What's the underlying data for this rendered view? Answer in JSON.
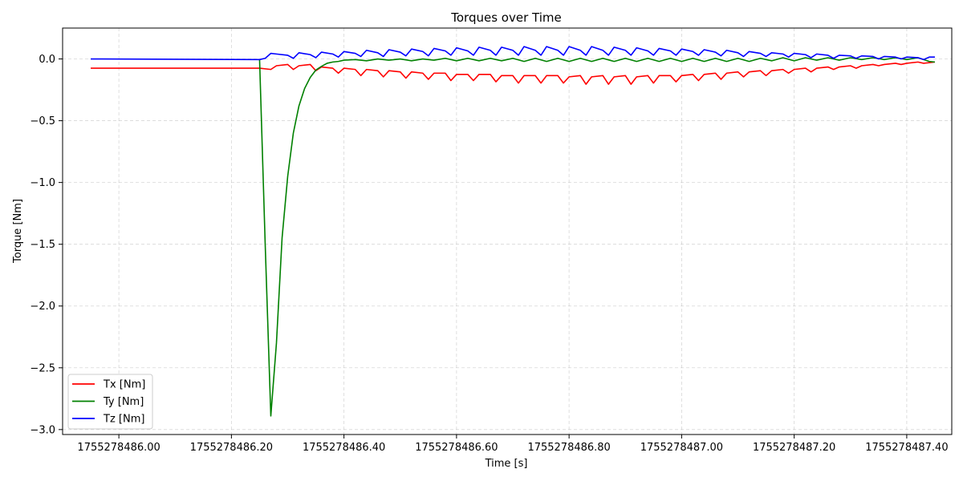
{
  "chart_data": {
    "type": "line",
    "title": "Torques over Time",
    "xlabel": "Time [s]",
    "ylabel": "Torque [Nm]",
    "xlim": [
      1755278485.9,
      1755278487.48
    ],
    "ylim": [
      -3.04,
      0.25
    ],
    "xticks": [
      {
        "value": 1755278486.0,
        "label": "1755278486.00"
      },
      {
        "value": 1755278486.2,
        "label": "1755278486.20"
      },
      {
        "value": 1755278486.4,
        "label": "1755278486.40"
      },
      {
        "value": 1755278486.6,
        "label": "1755278486.60"
      },
      {
        "value": 1755278486.8,
        "label": "1755278486.80"
      },
      {
        "value": 1755278487.0,
        "label": "1755278487.00"
      },
      {
        "value": 1755278487.2,
        "label": "1755278487.20"
      },
      {
        "value": 1755278487.4,
        "label": "1755278487.40"
      }
    ],
    "yticks": [
      {
        "value": 0.0,
        "label": "0.0"
      },
      {
        "value": -0.5,
        "label": "−0.5"
      },
      {
        "value": -1.0,
        "label": "−1.0"
      },
      {
        "value": -1.5,
        "label": "−1.5"
      },
      {
        "value": -2.0,
        "label": "−2.0"
      },
      {
        "value": -2.5,
        "label": "−2.5"
      },
      {
        "value": -3.0,
        "label": "−3.0"
      }
    ],
    "grid": true,
    "legend_position": "bottom-left",
    "series": [
      {
        "name": "Tx [Nm]",
        "color": "#ff0000",
        "points": [
          [
            1755278485.95,
            -0.075
          ],
          [
            1755278486.25,
            -0.075
          ],
          [
            1755278486.27,
            -0.085
          ],
          [
            1755278486.28,
            -0.055
          ],
          [
            1755278486.3,
            -0.045
          ],
          [
            1755278486.31,
            -0.085
          ],
          [
            1755278486.32,
            -0.055
          ],
          [
            1755278486.34,
            -0.045
          ],
          [
            1755278486.35,
            -0.095
          ],
          [
            1755278486.36,
            -0.065
          ],
          [
            1755278486.38,
            -0.075
          ],
          [
            1755278486.39,
            -0.115
          ],
          [
            1755278486.4,
            -0.075
          ],
          [
            1755278486.42,
            -0.085
          ],
          [
            1755278486.43,
            -0.135
          ],
          [
            1755278486.44,
            -0.085
          ],
          [
            1755278486.46,
            -0.095
          ],
          [
            1755278486.47,
            -0.145
          ],
          [
            1755278486.48,
            -0.095
          ],
          [
            1755278486.5,
            -0.105
          ],
          [
            1755278486.51,
            -0.155
          ],
          [
            1755278486.52,
            -0.105
          ],
          [
            1755278486.54,
            -0.115
          ],
          [
            1755278486.55,
            -0.165
          ],
          [
            1755278486.56,
            -0.115
          ],
          [
            1755278486.58,
            -0.115
          ],
          [
            1755278486.59,
            -0.175
          ],
          [
            1755278486.6,
            -0.125
          ],
          [
            1755278486.62,
            -0.125
          ],
          [
            1755278486.63,
            -0.175
          ],
          [
            1755278486.64,
            -0.125
          ],
          [
            1755278486.66,
            -0.125
          ],
          [
            1755278486.67,
            -0.185
          ],
          [
            1755278486.68,
            -0.135
          ],
          [
            1755278486.7,
            -0.135
          ],
          [
            1755278486.71,
            -0.195
          ],
          [
            1755278486.72,
            -0.135
          ],
          [
            1755278486.74,
            -0.135
          ],
          [
            1755278486.75,
            -0.195
          ],
          [
            1755278486.76,
            -0.135
          ],
          [
            1755278486.78,
            -0.135
          ],
          [
            1755278486.79,
            -0.195
          ],
          [
            1755278486.8,
            -0.145
          ],
          [
            1755278486.82,
            -0.135
          ],
          [
            1755278486.83,
            -0.205
          ],
          [
            1755278486.84,
            -0.145
          ],
          [
            1755278486.86,
            -0.135
          ],
          [
            1755278486.87,
            -0.205
          ],
          [
            1755278486.88,
            -0.145
          ],
          [
            1755278486.9,
            -0.135
          ],
          [
            1755278486.91,
            -0.205
          ],
          [
            1755278486.92,
            -0.145
          ],
          [
            1755278486.94,
            -0.135
          ],
          [
            1755278486.95,
            -0.195
          ],
          [
            1755278486.96,
            -0.135
          ],
          [
            1755278486.98,
            -0.135
          ],
          [
            1755278486.99,
            -0.185
          ],
          [
            1755278487.0,
            -0.135
          ],
          [
            1755278487.02,
            -0.125
          ],
          [
            1755278487.03,
            -0.175
          ],
          [
            1755278487.04,
            -0.125
          ],
          [
            1755278487.06,
            -0.115
          ],
          [
            1755278487.07,
            -0.165
          ],
          [
            1755278487.08,
            -0.115
          ],
          [
            1755278487.1,
            -0.105
          ],
          [
            1755278487.11,
            -0.145
          ],
          [
            1755278487.12,
            -0.105
          ],
          [
            1755278487.14,
            -0.095
          ],
          [
            1755278487.15,
            -0.135
          ],
          [
            1755278487.16,
            -0.095
          ],
          [
            1755278487.18,
            -0.085
          ],
          [
            1755278487.19,
            -0.115
          ],
          [
            1755278487.2,
            -0.085
          ],
          [
            1755278487.22,
            -0.075
          ],
          [
            1755278487.23,
            -0.105
          ],
          [
            1755278487.24,
            -0.075
          ],
          [
            1755278487.26,
            -0.065
          ],
          [
            1755278487.27,
            -0.085
          ],
          [
            1755278487.28,
            -0.065
          ],
          [
            1755278487.3,
            -0.055
          ],
          [
            1755278487.31,
            -0.075
          ],
          [
            1755278487.32,
            -0.055
          ],
          [
            1755278487.34,
            -0.045
          ],
          [
            1755278487.35,
            -0.055
          ],
          [
            1755278487.36,
            -0.045
          ],
          [
            1755278487.38,
            -0.035
          ],
          [
            1755278487.39,
            -0.045
          ],
          [
            1755278487.4,
            -0.035
          ],
          [
            1755278487.42,
            -0.025
          ],
          [
            1755278487.43,
            -0.035
          ],
          [
            1755278487.45,
            -0.025
          ]
        ]
      },
      {
        "name": "Ty [Nm]",
        "color": "#008000",
        "points": [
          [
            1755278486.25,
            0.0
          ],
          [
            1755278486.26,
            -1.5
          ],
          [
            1755278486.27,
            -2.89
          ],
          [
            1755278486.28,
            -2.3
          ],
          [
            1755278486.29,
            -1.45
          ],
          [
            1755278486.3,
            -0.95
          ],
          [
            1755278486.31,
            -0.6
          ],
          [
            1755278486.32,
            -0.38
          ],
          [
            1755278486.33,
            -0.24
          ],
          [
            1755278486.34,
            -0.15
          ],
          [
            1755278486.35,
            -0.09
          ],
          [
            1755278486.36,
            -0.06
          ],
          [
            1755278486.37,
            -0.035
          ],
          [
            1755278486.38,
            -0.025
          ],
          [
            1755278486.39,
            -0.02
          ],
          [
            1755278486.4,
            -0.01
          ],
          [
            1755278486.42,
            -0.005
          ],
          [
            1755278486.44,
            -0.015
          ],
          [
            1755278486.46,
            0.0
          ],
          [
            1755278486.48,
            -0.01
          ],
          [
            1755278486.5,
            0.0
          ],
          [
            1755278486.52,
            -0.015
          ],
          [
            1755278486.54,
            0.0
          ],
          [
            1755278486.56,
            -0.01
          ],
          [
            1755278486.58,
            0.005
          ],
          [
            1755278486.6,
            -0.015
          ],
          [
            1755278486.62,
            0.005
          ],
          [
            1755278486.64,
            -0.015
          ],
          [
            1755278486.66,
            0.005
          ],
          [
            1755278486.68,
            -0.015
          ],
          [
            1755278486.7,
            0.005
          ],
          [
            1755278486.72,
            -0.02
          ],
          [
            1755278486.74,
            0.005
          ],
          [
            1755278486.76,
            -0.02
          ],
          [
            1755278486.78,
            0.005
          ],
          [
            1755278486.8,
            -0.02
          ],
          [
            1755278486.82,
            0.005
          ],
          [
            1755278486.84,
            -0.02
          ],
          [
            1755278486.86,
            0.005
          ],
          [
            1755278486.88,
            -0.02
          ],
          [
            1755278486.9,
            0.005
          ],
          [
            1755278486.92,
            -0.02
          ],
          [
            1755278486.94,
            0.005
          ],
          [
            1755278486.96,
            -0.02
          ],
          [
            1755278486.98,
            0.005
          ],
          [
            1755278487.0,
            -0.02
          ],
          [
            1755278487.02,
            0.005
          ],
          [
            1755278487.04,
            -0.02
          ],
          [
            1755278487.06,
            0.005
          ],
          [
            1755278487.08,
            -0.02
          ],
          [
            1755278487.1,
            0.005
          ],
          [
            1755278487.12,
            -0.02
          ],
          [
            1755278487.14,
            0.005
          ],
          [
            1755278487.16,
            -0.015
          ],
          [
            1755278487.18,
            0.01
          ],
          [
            1755278487.2,
            -0.015
          ],
          [
            1755278487.22,
            0.01
          ],
          [
            1755278487.24,
            -0.01
          ],
          [
            1755278487.26,
            0.01
          ],
          [
            1755278487.28,
            -0.01
          ],
          [
            1755278487.3,
            0.01
          ],
          [
            1755278487.32,
            -0.005
          ],
          [
            1755278487.34,
            0.01
          ],
          [
            1755278487.36,
            -0.005
          ],
          [
            1755278487.38,
            0.01
          ],
          [
            1755278487.4,
            -0.005
          ],
          [
            1755278487.42,
            0.01
          ],
          [
            1755278487.44,
            -0.02
          ],
          [
            1755278487.45,
            -0.025
          ]
        ]
      },
      {
        "name": "Tz [Nm]",
        "color": "#0000ff",
        "points": [
          [
            1755278485.95,
            0.0
          ],
          [
            1755278486.25,
            -0.005
          ],
          [
            1755278486.26,
            0.005
          ],
          [
            1755278486.27,
            0.045
          ],
          [
            1755278486.28,
            0.04
          ],
          [
            1755278486.3,
            0.03
          ],
          [
            1755278486.31,
            0.005
          ],
          [
            1755278486.32,
            0.05
          ],
          [
            1755278486.34,
            0.035
          ],
          [
            1755278486.35,
            0.01
          ],
          [
            1755278486.36,
            0.055
          ],
          [
            1755278486.38,
            0.04
          ],
          [
            1755278486.39,
            0.015
          ],
          [
            1755278486.4,
            0.06
          ],
          [
            1755278486.42,
            0.045
          ],
          [
            1755278486.43,
            0.02
          ],
          [
            1755278486.44,
            0.07
          ],
          [
            1755278486.46,
            0.05
          ],
          [
            1755278486.47,
            0.02
          ],
          [
            1755278486.48,
            0.075
          ],
          [
            1755278486.5,
            0.055
          ],
          [
            1755278486.51,
            0.025
          ],
          [
            1755278486.52,
            0.08
          ],
          [
            1755278486.54,
            0.06
          ],
          [
            1755278486.55,
            0.025
          ],
          [
            1755278486.56,
            0.085
          ],
          [
            1755278486.58,
            0.065
          ],
          [
            1755278486.59,
            0.03
          ],
          [
            1755278486.6,
            0.09
          ],
          [
            1755278486.62,
            0.065
          ],
          [
            1755278486.63,
            0.03
          ],
          [
            1755278486.64,
            0.095
          ],
          [
            1755278486.66,
            0.07
          ],
          [
            1755278486.67,
            0.03
          ],
          [
            1755278486.68,
            0.095
          ],
          [
            1755278486.7,
            0.07
          ],
          [
            1755278486.71,
            0.03
          ],
          [
            1755278486.72,
            0.1
          ],
          [
            1755278486.74,
            0.07
          ],
          [
            1755278486.75,
            0.03
          ],
          [
            1755278486.76,
            0.1
          ],
          [
            1755278486.78,
            0.07
          ],
          [
            1755278486.79,
            0.03
          ],
          [
            1755278486.8,
            0.1
          ],
          [
            1755278486.82,
            0.07
          ],
          [
            1755278486.83,
            0.03
          ],
          [
            1755278486.84,
            0.1
          ],
          [
            1755278486.86,
            0.07
          ],
          [
            1755278486.87,
            0.03
          ],
          [
            1755278486.88,
            0.095
          ],
          [
            1755278486.9,
            0.07
          ],
          [
            1755278486.91,
            0.03
          ],
          [
            1755278486.92,
            0.09
          ],
          [
            1755278486.94,
            0.065
          ],
          [
            1755278486.95,
            0.03
          ],
          [
            1755278486.96,
            0.085
          ],
          [
            1755278486.98,
            0.065
          ],
          [
            1755278486.99,
            0.03
          ],
          [
            1755278487.0,
            0.08
          ],
          [
            1755278487.02,
            0.06
          ],
          [
            1755278487.03,
            0.03
          ],
          [
            1755278487.04,
            0.075
          ],
          [
            1755278487.06,
            0.055
          ],
          [
            1755278487.07,
            0.025
          ],
          [
            1755278487.08,
            0.07
          ],
          [
            1755278487.1,
            0.05
          ],
          [
            1755278487.11,
            0.02
          ],
          [
            1755278487.12,
            0.06
          ],
          [
            1755278487.14,
            0.045
          ],
          [
            1755278487.15,
            0.02
          ],
          [
            1755278487.16,
            0.05
          ],
          [
            1755278487.18,
            0.04
          ],
          [
            1755278487.19,
            0.015
          ],
          [
            1755278487.2,
            0.045
          ],
          [
            1755278487.22,
            0.035
          ],
          [
            1755278487.23,
            0.01
          ],
          [
            1755278487.24,
            0.04
          ],
          [
            1755278487.26,
            0.03
          ],
          [
            1755278487.27,
            0.005
          ],
          [
            1755278487.28,
            0.03
          ],
          [
            1755278487.3,
            0.025
          ],
          [
            1755278487.31,
            0.005
          ],
          [
            1755278487.32,
            0.025
          ],
          [
            1755278487.34,
            0.02
          ],
          [
            1755278487.35,
            0.0
          ],
          [
            1755278487.36,
            0.02
          ],
          [
            1755278487.38,
            0.015
          ],
          [
            1755278487.39,
            0.0
          ],
          [
            1755278487.4,
            0.015
          ],
          [
            1755278487.42,
            0.01
          ],
          [
            1755278487.43,
            -0.005
          ],
          [
            1755278487.44,
            0.015
          ],
          [
            1755278487.45,
            0.015
          ]
        ]
      }
    ]
  }
}
